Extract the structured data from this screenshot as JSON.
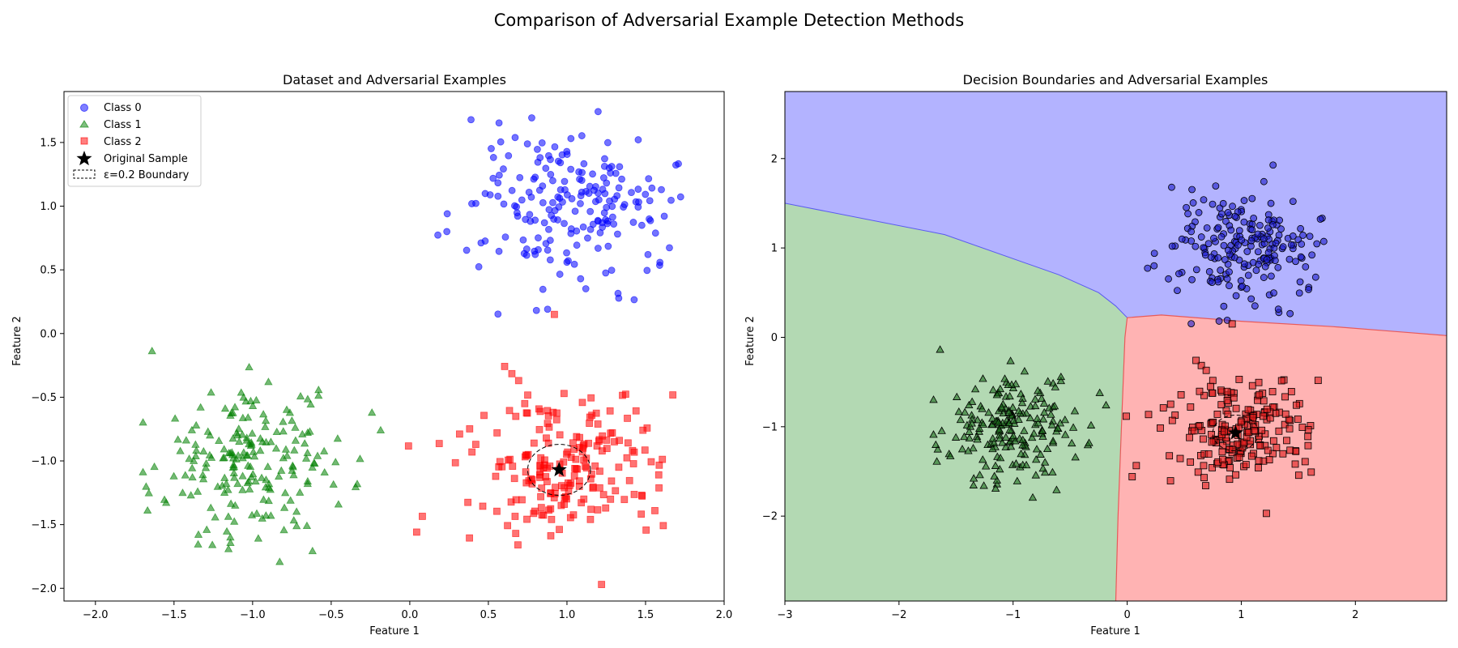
{
  "page": {
    "suptitle": "Comparison of Adversarial Example Detection Methods"
  },
  "colors": {
    "class0": "#0000ff",
    "class1": "#008000",
    "class2": "#ff0000",
    "region0": "#b3b3ff",
    "region1": "#b3d9b3",
    "region2": "#ffb3b3",
    "boundary0": "#5a5af0",
    "boundary1": "#6aa86a",
    "boundary2": "#e85a5a"
  },
  "chart_data": [
    {
      "type": "scatter",
      "title": "Dataset and Adversarial Examples",
      "xlabel": "Feature 1",
      "ylabel": "Feature 2",
      "xlim": [
        -2.2,
        2.0
      ],
      "ylim": [
        -2.1,
        1.9
      ],
      "xticks": [
        "−2.0",
        "−1.5",
        "−1.0",
        "−0.5",
        "0.0",
        "0.5",
        "1.0",
        "1.5",
        "2.0"
      ],
      "xtick_values": [
        -2.0,
        -1.5,
        -1.0,
        -0.5,
        0.0,
        0.5,
        1.0,
        1.5,
        2.0
      ],
      "yticks": [
        "−2.0",
        "−1.5",
        "−1.0",
        "−0.5",
        "0.0",
        "0.5",
        "1.0",
        "1.5"
      ],
      "ytick_values": [
        -2.0,
        -1.5,
        -1.0,
        -0.5,
        0.0,
        0.5,
        1.0,
        1.5
      ],
      "grid": false,
      "legend_position": "upper-left",
      "legend": [
        "Class 0",
        "Class 1",
        "Class 2",
        "Original Sample",
        "ε=0.2 Boundary"
      ],
      "series": [
        {
          "name": "Class 0",
          "marker": "circle",
          "center": [
            1.0,
            1.0
          ],
          "std": [
            0.33,
            0.33
          ],
          "count": 200
        },
        {
          "name": "Class 1",
          "marker": "triangle",
          "center": [
            -1.0,
            -1.0
          ],
          "std": [
            0.3,
            0.3
          ],
          "count": 200
        },
        {
          "name": "Class 2",
          "marker": "square",
          "center": [
            1.0,
            -1.0
          ],
          "std": [
            0.3,
            0.3
          ],
          "count": 200,
          "outliers": [
            [
              0.92,
              0.15
            ],
            [
              1.22,
              -1.97
            ]
          ]
        }
      ],
      "original_sample": [
        0.95,
        -1.07
      ],
      "epsilon_radius": 0.2
    },
    {
      "type": "scatter",
      "title": "Decision Boundaries and Adversarial Examples",
      "xlabel": "Feature 1",
      "ylabel": "Feature 2",
      "xlim": [
        -3.0,
        2.8
      ],
      "ylim": [
        -2.95,
        2.75
      ],
      "xticks": [
        "−3",
        "−2",
        "−1",
        "0",
        "1",
        "2"
      ],
      "xtick_values": [
        -3,
        -2,
        -1,
        0,
        1,
        2
      ],
      "yticks": [
        "−2",
        "−1",
        "0",
        "1",
        "2"
      ],
      "ytick_values": [
        -2,
        -1,
        0,
        1,
        2
      ],
      "grid": false,
      "regions": [
        "Class 0",
        "Class 1",
        "Class 2"
      ],
      "original_sample": [
        0.95,
        -1.07
      ],
      "epsilon_radius": 0.2
    }
  ]
}
